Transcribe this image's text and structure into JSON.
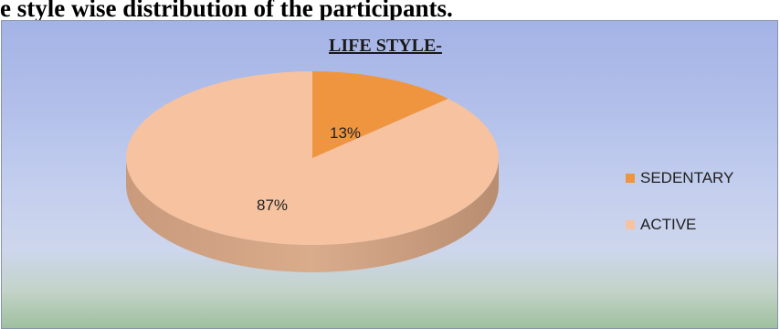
{
  "caption": "e style wise distribution of the participants.",
  "chart_data": {
    "type": "pie",
    "title": "LIFE STYLE-",
    "categories": [
      "SEDENTARY",
      "ACTIVE"
    ],
    "values": [
      13,
      87
    ],
    "data_labels": [
      "13%",
      "87%"
    ],
    "colors": [
      "#f0953f",
      "#f6c2a0"
    ],
    "legend_position": "right",
    "style": "3d"
  }
}
